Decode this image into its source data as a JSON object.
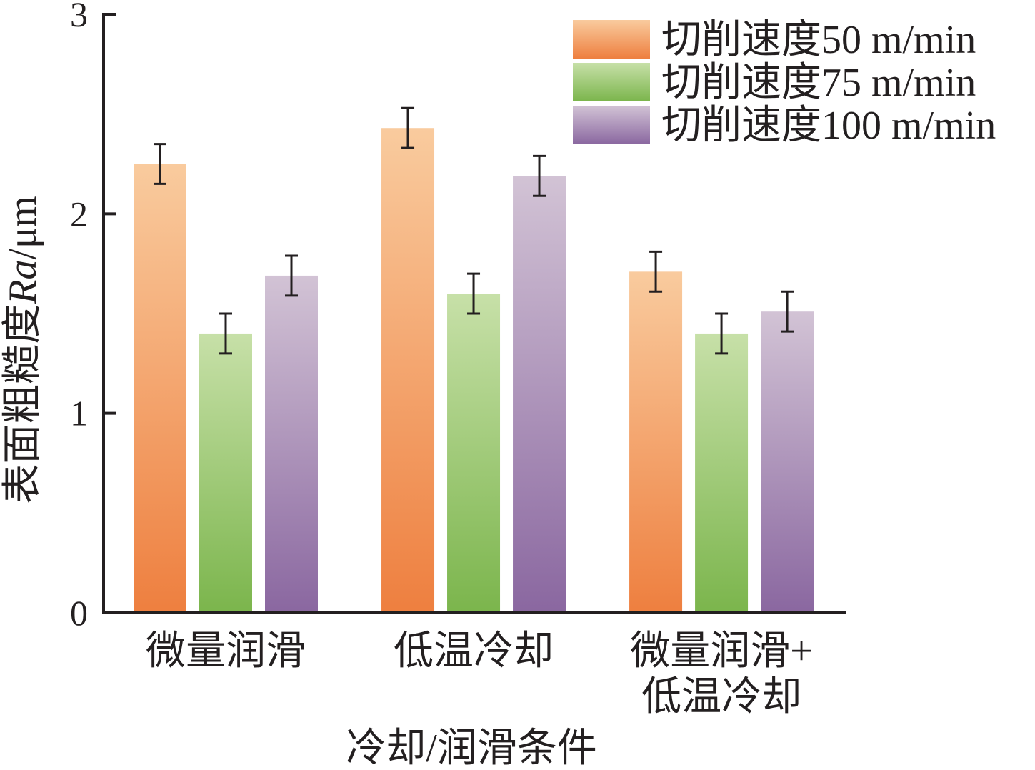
{
  "chart_data": {
    "type": "bar",
    "categories": [
      [
        "微量润滑"
      ],
      [
        "低温冷却"
      ],
      [
        "微量润滑+",
        "低温冷却"
      ]
    ],
    "series": [
      {
        "name": "切削速度50 m/min",
        "values": [
          2.25,
          2.43,
          1.71
        ],
        "errors": [
          0.1,
          0.1,
          0.1
        ],
        "color_top": "#f9cb9e",
        "color_bottom": "#ee7f3f"
      },
      {
        "name": "切削速度75 m/min",
        "values": [
          1.4,
          1.6,
          1.4
        ],
        "errors": [
          0.1,
          0.1,
          0.1
        ],
        "color_top": "#c7e0a8",
        "color_bottom": "#7bb54c"
      },
      {
        "name": "切削速度100 m/min",
        "values": [
          1.69,
          2.19,
          1.51
        ],
        "errors": [
          0.1,
          0.1,
          0.1
        ],
        "color_top": "#d2c3d5",
        "color_bottom": "#8a67a0"
      }
    ],
    "xlabel": "冷却/润滑条件",
    "ylabel": "表面粗糙度",
    "ylabel_symbol": "Ra",
    "ylabel_unit": "/μm",
    "ylim": [
      0,
      3
    ],
    "yticks": [
      0,
      1,
      2,
      3
    ],
    "legend_position": "top-right",
    "grid": false
  }
}
